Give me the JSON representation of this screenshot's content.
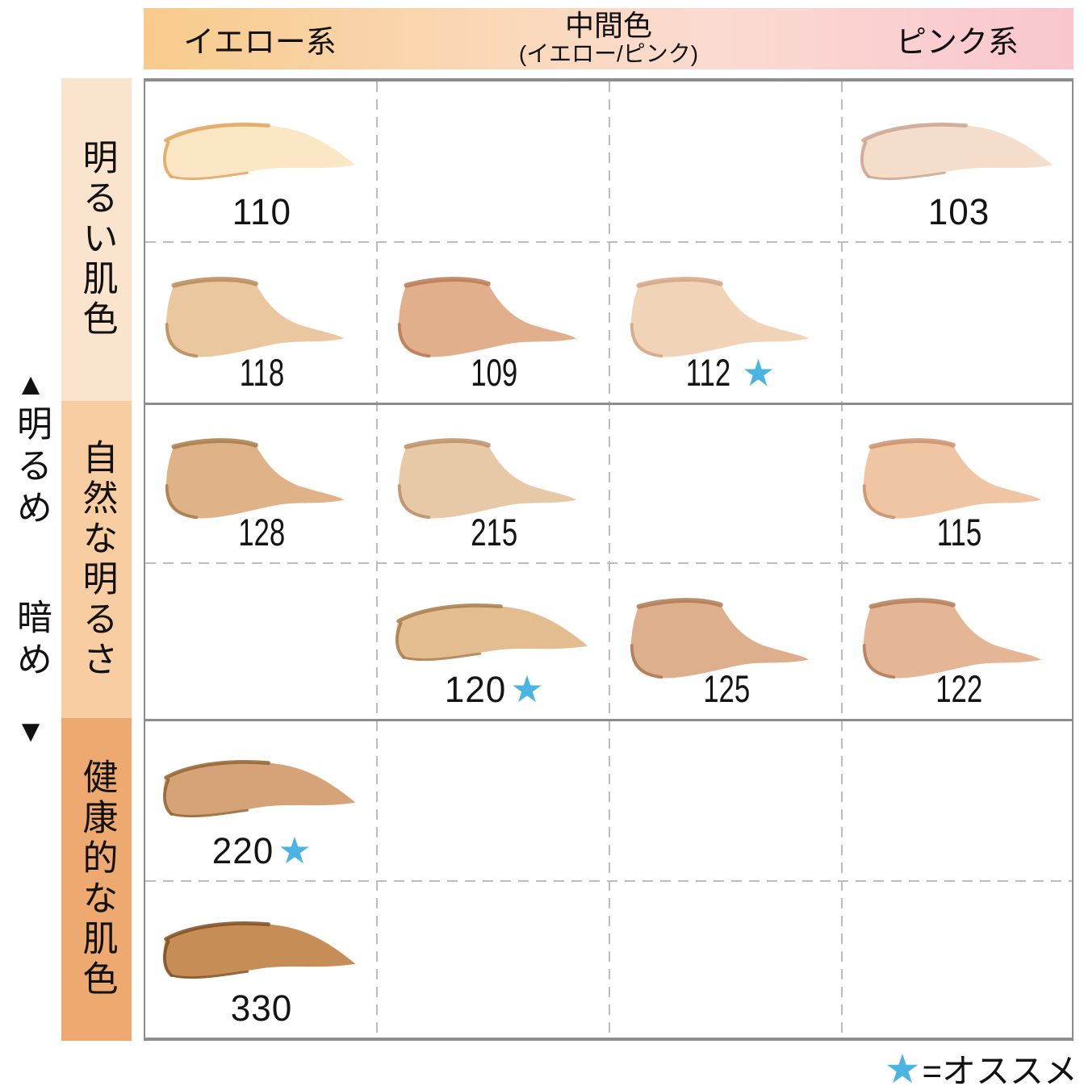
{
  "header": {
    "columns": [
      {
        "label": "イエロー系"
      },
      {
        "label": "中間色",
        "sublabel": "(イエロー/ピンク)"
      },
      {
        "label": "ピンク系"
      }
    ],
    "gradient": [
      "#F8CB8B",
      "#FAD9BB",
      "#FBDAD2",
      "#F9C6CE"
    ]
  },
  "axis": {
    "up_arrow": "▲",
    "bright_label": "明るめ",
    "dark_label": "暗め",
    "down_arrow": "▼"
  },
  "row_groups": [
    {
      "label": "明るい肌色",
      "bg": "#FAE4CE"
    },
    {
      "label": "自然な明るさ",
      "bg": "#F8CDA2"
    },
    {
      "label": "健康的な肌色",
      "bg": "#EDA96F"
    }
  ],
  "legend": {
    "star": "★",
    "text": "=オススメ"
  },
  "colors": {
    "star": "#4AB5E2",
    "grid_border": "#8D8D8D",
    "grid_dash": "#BCBCBC"
  },
  "grid": {
    "rows": 6,
    "cols": 4,
    "cells": [
      {
        "row": 0,
        "col": 0,
        "shade": "110",
        "star": false,
        "shape": "long",
        "wide": true,
        "color": "#FBE7C6",
        "edge": "#E0A258"
      },
      {
        "row": 0,
        "col": 3,
        "shade": "103",
        "star": false,
        "shape": "long",
        "wide": true,
        "color": "#F4DDCB",
        "edge": "#C9A390"
      },
      {
        "row": 1,
        "col": 0,
        "shade": "118",
        "star": false,
        "shape": "compact",
        "wide": false,
        "color": "#EAC79F",
        "edge": "#B9895B"
      },
      {
        "row": 1,
        "col": 1,
        "shade": "109",
        "star": false,
        "shape": "compact",
        "wide": false,
        "color": "#E2AF8C",
        "edge": "#BA7A55"
      },
      {
        "row": 1,
        "col": 2,
        "shade": "112",
        "star": true,
        "shape": "compact",
        "wide": false,
        "color": "#F1D3B7",
        "edge": "#D3A583"
      },
      {
        "row": 2,
        "col": 0,
        "shade": "128",
        "star": false,
        "shape": "compact",
        "wide": false,
        "color": "#DFB287",
        "edge": "#A87A49"
      },
      {
        "row": 2,
        "col": 1,
        "shade": "215",
        "star": false,
        "shape": "compact",
        "wide": false,
        "color": "#E8C9A7",
        "edge": "#BC8F66"
      },
      {
        "row": 2,
        "col": 3,
        "shade": "115",
        "star": false,
        "shape": "compact",
        "wide": false,
        "color": "#EFC5A4",
        "edge": "#CA8F6C"
      },
      {
        "row": 3,
        "col": 1,
        "shade": "120",
        "star": true,
        "shape": "long",
        "wide": true,
        "color": "#E3BC90",
        "edge": "#A87C4A"
      },
      {
        "row": 3,
        "col": 2,
        "shade": "125",
        "star": false,
        "shape": "compact",
        "wide": false,
        "color": "#DDAF8D",
        "edge": "#AD7B54"
      },
      {
        "row": 3,
        "col": 3,
        "shade": "122",
        "star": false,
        "shape": "compact",
        "wide": false,
        "color": "#E4B695",
        "edge": "#B27E59"
      },
      {
        "row": 4,
        "col": 0,
        "shade": "220",
        "star": true,
        "shape": "long",
        "wide": true,
        "color": "#D5A377",
        "edge": "#91642F"
      },
      {
        "row": 5,
        "col": 0,
        "shade": "330",
        "star": false,
        "shape": "long",
        "wide": true,
        "color": "#C78D57",
        "edge": "#7C4F22"
      }
    ]
  }
}
